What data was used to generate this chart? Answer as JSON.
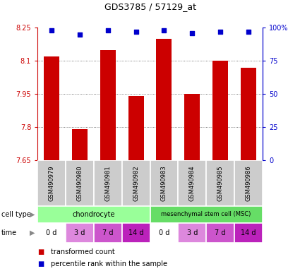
{
  "title": "GDS3785 / 57129_at",
  "samples": [
    "GSM490979",
    "GSM490980",
    "GSM490981",
    "GSM490982",
    "GSM490983",
    "GSM490984",
    "GSM490985",
    "GSM490986"
  ],
  "bar_values": [
    8.12,
    7.79,
    8.15,
    7.94,
    8.2,
    7.95,
    8.1,
    8.07
  ],
  "percentile_values": [
    98,
    95,
    98,
    97,
    98,
    96,
    97,
    97
  ],
  "ylim": [
    7.65,
    8.25
  ],
  "yticks": [
    7.65,
    7.8,
    7.95,
    8.1,
    8.25
  ],
  "ytick_labels": [
    "7.65",
    "7.8",
    "7.95",
    "8.1",
    "8.25"
  ],
  "right_yticks": [
    0,
    25,
    50,
    75,
    100
  ],
  "right_ytick_labels": [
    "0",
    "25",
    "50",
    "75",
    "100%"
  ],
  "bar_color": "#cc0000",
  "dot_color": "#0000cc",
  "bar_bottom": 7.65,
  "chondrocyte_color": "#99ff99",
  "msc_color": "#66dd66",
  "time_colors": [
    "#ffffff",
    "#dd88dd",
    "#cc55cc",
    "#bb22bb",
    "#ffffff",
    "#dd88dd",
    "#cc55cc",
    "#bb22bb"
  ],
  "time_labels": [
    "0 d",
    "3 d",
    "7 d",
    "14 d",
    "0 d",
    "3 d",
    "7 d",
    "14 d"
  ],
  "sample_bg_color": "#cccccc",
  "left_axis_color": "#cc0000",
  "right_axis_color": "#0000cc",
  "grid_line_color": "#555555",
  "title_fontsize": 9,
  "tick_fontsize": 7,
  "label_fontsize": 7,
  "sample_fontsize": 6
}
